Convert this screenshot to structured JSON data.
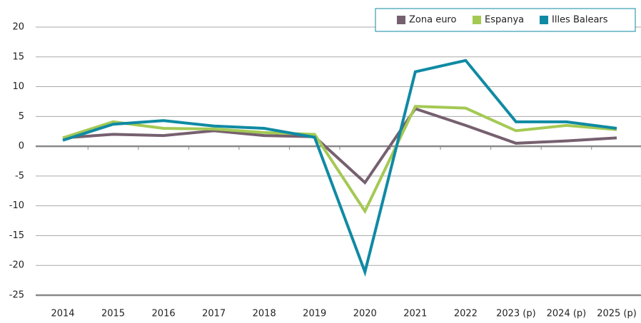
{
  "chart_data": {
    "type": "line",
    "categories": [
      "2014",
      "2015",
      "2016",
      "2017",
      "2018",
      "2019",
      "2020",
      "2021",
      "2022",
      "2023 (p)",
      "2024 (p)",
      "2025 (p)"
    ],
    "series": [
      {
        "name": "Zona euro",
        "color": "#76606f",
        "values": [
          1.4,
          2.0,
          1.8,
          2.6,
          1.8,
          1.6,
          -6.1,
          6.3,
          3.5,
          0.5,
          0.9,
          1.4
        ]
      },
      {
        "name": "Espanya",
        "color": "#a4c954",
        "values": [
          1.4,
          4.1,
          3.0,
          2.9,
          2.3,
          2.0,
          -10.9,
          6.7,
          6.4,
          2.6,
          3.5,
          2.8
        ]
      },
      {
        "name": "Illes Balears",
        "color": "#0f8aa3",
        "values": [
          1.0,
          3.7,
          4.3,
          3.4,
          3.0,
          1.5,
          -21.1,
          12.5,
          14.4,
          4.1,
          4.1,
          3.0
        ]
      }
    ],
    "ylim": [
      -25,
      20
    ],
    "yticks": [
      -25,
      -20,
      -15,
      -10,
      -5,
      0,
      5,
      10,
      15,
      20
    ],
    "grid": true,
    "legend": "top-right"
  }
}
